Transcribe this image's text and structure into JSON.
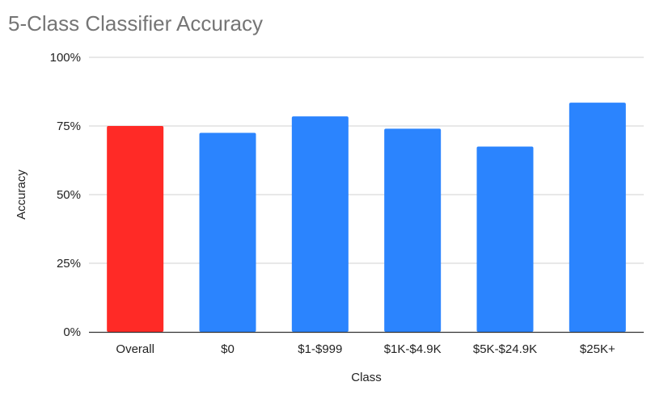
{
  "chart_data": {
    "type": "bar",
    "title": "5-Class Classifier Accuracy",
    "xlabel": "Class",
    "ylabel": "Accuracy",
    "categories": [
      "Overall",
      "$0",
      "$1-$999",
      "$1K-$4.9K",
      "$5K-$24.9K",
      "$25K+"
    ],
    "values": [
      75,
      72.5,
      78.5,
      74,
      67.5,
      83.5
    ],
    "bar_colors": [
      "#ff2a26",
      "#2b84fe",
      "#2b84fe",
      "#2b84fe",
      "#2b84fe",
      "#2b84fe"
    ],
    "ylim": [
      0,
      100
    ],
    "yticks": [
      0,
      25,
      50,
      75,
      100
    ],
    "ytick_labels": [
      "0%",
      "25%",
      "50%",
      "75%",
      "100%"
    ],
    "grid": true,
    "legend": "none"
  }
}
